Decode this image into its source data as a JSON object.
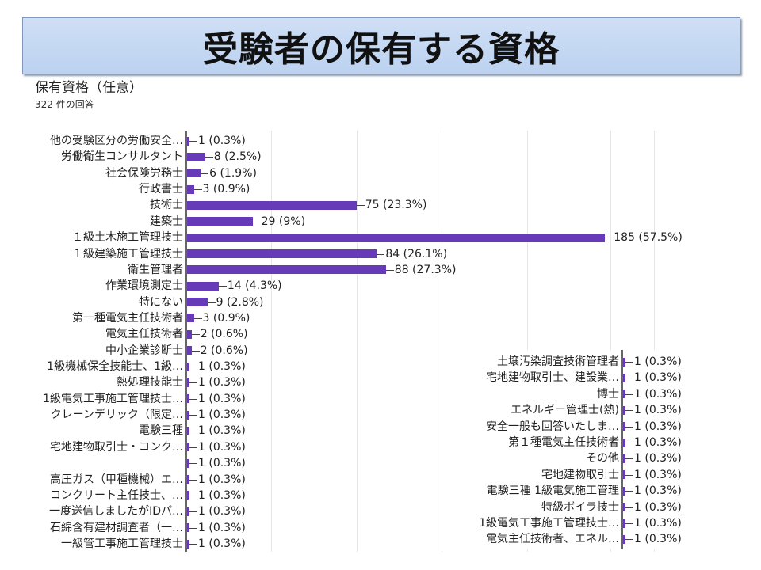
{
  "slide_title": "受験者の保有する資格",
  "question": {
    "title": "保有資格（任意）",
    "response_count": "322 件の回答"
  },
  "colors": {
    "bar": "#673ab7",
    "banner": "#c5d9f1"
  },
  "chart_data": [
    {
      "type": "bar",
      "orientation": "horizontal",
      "title": "保有資格（任意）",
      "categories": [
        "他の受験区分の労働安全…",
        "労働衛生コンサルタント",
        "社会保険労務士",
        "行政書士",
        "技術士",
        "建築士",
        "１級土木施工管理技士",
        "１級建築施工管理技士",
        "衛生管理者",
        "作業環境測定士",
        "特にない",
        "第一種電気主任技術者",
        "電気主任技術者",
        "中小企業診断士",
        "1級機械保全技能士、1級…",
        "熱処理技能士",
        "1級電気工事施工管理技士…",
        "クレーンデリック（限定…",
        "電験三種",
        "宅地建物取引士・コンク…",
        "",
        "高圧ガス（甲種機械）エ…",
        "コンクリート主任技士、…",
        "一度送信しましたがIDパ…",
        "石綿含有建材調査者（一…",
        "一級管工事施工管理技士"
      ],
      "values": [
        1,
        8,
        6,
        3,
        75,
        29,
        185,
        84,
        88,
        14,
        9,
        3,
        2,
        2,
        1,
        1,
        1,
        1,
        1,
        1,
        1,
        1,
        1,
        1,
        1,
        1
      ],
      "labels": [
        "1 (0.3%)",
        "8 (2.5%)",
        "6 (1.9%)",
        "3 (0.9%)",
        "75 (23.3%)",
        "29 (9%)",
        "185 (57.5%)",
        "84 (26.1%)",
        "88 (27.3%)",
        "14 (4.3%)",
        "9 (2.8%)",
        "3 (0.9%)",
        "2 (0.6%)",
        "2 (0.6%)",
        "1 (0.3%)",
        "1 (0.3%)",
        "1 (0.3%)",
        "1 (0.3%)",
        "1 (0.3%)",
        "1 (0.3%)",
        "1 (0.3%)",
        "1 (0.3%)",
        "1 (0.3%)",
        "1 (0.3%)",
        "1 (0.3%)",
        "1 (0.3%)"
      ]
    },
    {
      "type": "bar",
      "orientation": "horizontal",
      "categories": [
        "土壌汚染調査技術管理者",
        "宅地建物取引士、建設業…",
        "博士",
        "エネルギー管理士(熱)",
        "安全一般も回答いたしま…",
        "第１種電気主任技術者",
        "その他",
        "宅地建物取引士",
        "電験三種 1級電気施工管理",
        "特級ボイラ技士",
        "1級電気工事施工管理技士…",
        "電気主任技術者、エネル…"
      ],
      "values": [
        1,
        1,
        1,
        1,
        1,
        1,
        1,
        1,
        1,
        1,
        1,
        1
      ],
      "labels": [
        "1 (0.3%)",
        "1 (0.3%)",
        "1 (0.3%)",
        "1 (0.3%)",
        "1 (0.3%)",
        "1 (0.3%)",
        "1 (0.3%)",
        "1 (0.3%)",
        "1 (0.3%)",
        "1 (0.3%)",
        "1 (0.3%)",
        "1 (0.3%)"
      ]
    }
  ]
}
